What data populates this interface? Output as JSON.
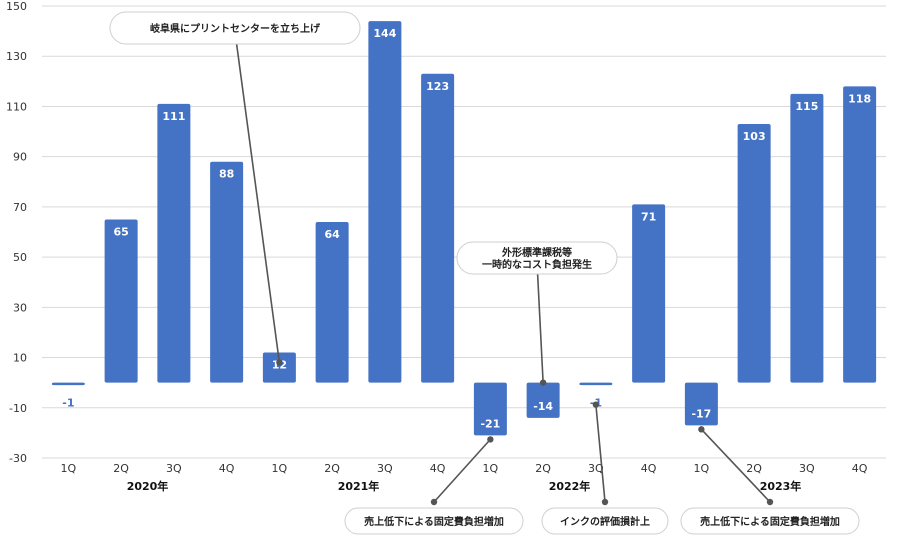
{
  "chart_data": {
    "type": "bar",
    "ylim": [
      -30,
      150
    ],
    "yticks": [
      -30,
      -10,
      10,
      30,
      50,
      70,
      90,
      110,
      130,
      150
    ],
    "grid": true,
    "bar_color": "#4472c4",
    "categories": [
      "1Q",
      "2Q",
      "3Q",
      "4Q",
      "1Q",
      "2Q",
      "3Q",
      "4Q",
      "1Q",
      "2Q",
      "3Q",
      "4Q",
      "1Q",
      "2Q",
      "3Q",
      "4Q"
    ],
    "years": [
      {
        "label": "2020年",
        "span": [
          0,
          3
        ]
      },
      {
        "label": "2021年",
        "span": [
          4,
          7
        ]
      },
      {
        "label": "2022年",
        "span": [
          8,
          11
        ]
      },
      {
        "label": "2023年",
        "span": [
          12,
          15
        ]
      }
    ],
    "values": [
      -1,
      65,
      111,
      88,
      12,
      64,
      144,
      123,
      -21,
      -14,
      -1,
      71,
      -17,
      103,
      115,
      118
    ],
    "annotations": [
      {
        "lines": [
          "岐阜県にプリントセンターを立ち上げ"
        ],
        "bar_index": 4,
        "position": "above"
      },
      {
        "lines": [
          "外形標準課税等",
          "一時的なコスト負担発生"
        ],
        "bar_index": 9,
        "position": "above"
      },
      {
        "lines": [
          "売上低下による固定費負担増加"
        ],
        "bar_index": 8,
        "position": "below"
      },
      {
        "lines": [
          "インクの評価損計上"
        ],
        "bar_index": 10,
        "position": "below"
      },
      {
        "lines": [
          "売上低下による固定費負担増加"
        ],
        "bar_index": 12,
        "position": "below"
      }
    ]
  }
}
